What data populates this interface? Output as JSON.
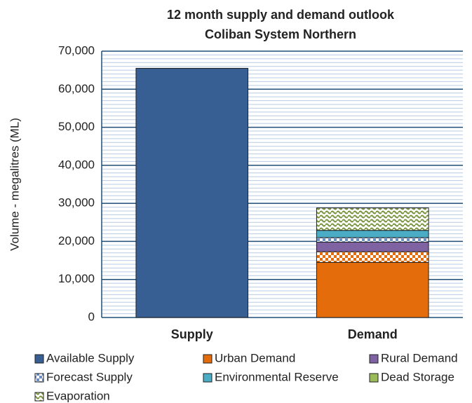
{
  "chart_data": {
    "type": "stacked_bar",
    "title": "12 month supply and demand outlook",
    "subtitle": "Coliban System Northern",
    "y_label": "Volume - megalitres (ML)",
    "categories": [
      "Supply",
      "Demand"
    ],
    "ylim": [
      0,
      70000
    ],
    "yticks": [
      0,
      {
        "value": 10000,
        "label": "10,000"
      },
      {
        "value": 20000,
        "label": "20,000"
      },
      {
        "value": 30000,
        "label": "30,000"
      },
      {
        "value": 40000,
        "label": "40,000"
      },
      {
        "value": 50000,
        "label": "50,000"
      },
      {
        "value": 60000,
        "label": "60,000"
      },
      {
        "value": 70000,
        "label": "70,000"
      }
    ],
    "yminor": 1000,
    "grid": true,
    "series": [
      {
        "name": "Available Supply",
        "color": "#375f93",
        "values": [
          65500,
          0
        ]
      },
      {
        "name": "Urban Demand",
        "color": "#e46c0a",
        "values": [
          0,
          14500
        ]
      },
      {
        "color": "#e46c0a",
        "pattern": "check",
        "values": [
          0,
          2800
        ]
      },
      {
        "name": "Rural Demand",
        "color": "#7f62a2",
        "values": [
          0,
          2500
        ]
      },
      {
        "name": "Forecast Supply",
        "color": "#6f8fc0",
        "pattern": "check",
        "values": [
          0,
          1200
        ]
      },
      {
        "name": "Environmental Reserve",
        "color": "#4bacc6",
        "values": [
          0,
          1900
        ]
      },
      {
        "name": "Dead Storage",
        "color": "#9bbb59",
        "values": [
          0,
          0
        ]
      },
      {
        "name": "Evaporation",
        "color": "#77933c",
        "pattern": "wave",
        "values": [
          0,
          5900
        ]
      }
    ]
  }
}
